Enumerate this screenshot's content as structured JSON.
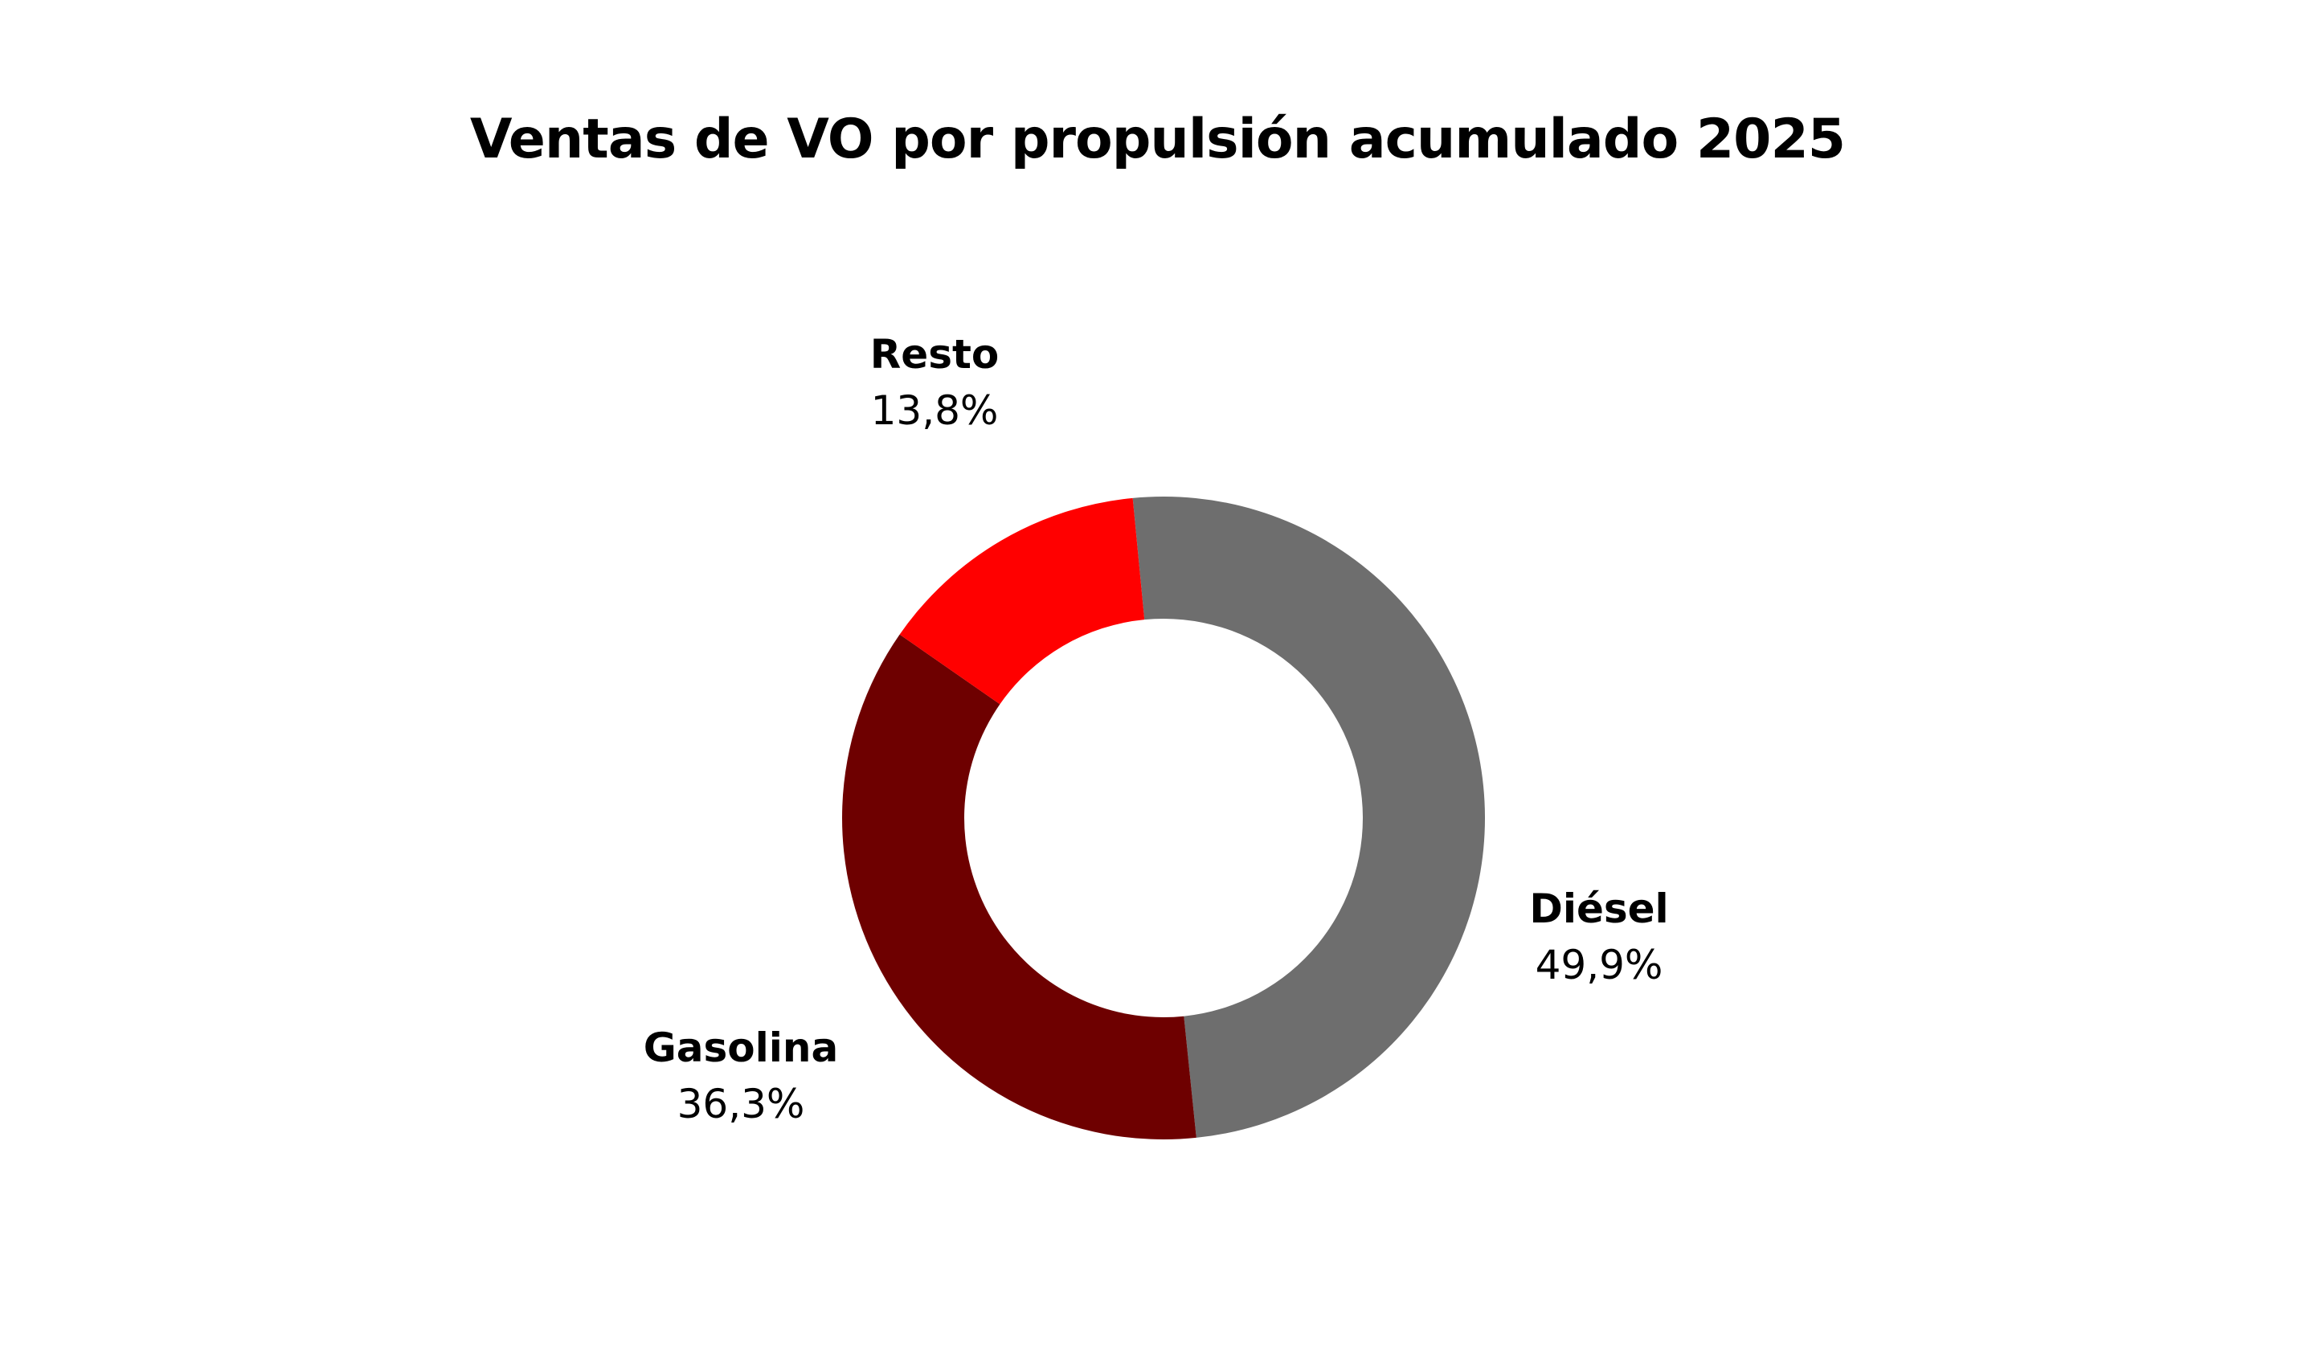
{
  "chart_data": {
    "type": "pie",
    "variant": "donut",
    "title": "Ventas de VO por propulsión acumulado 2025",
    "slices": [
      {
        "label": "Diésel",
        "value": 49.9,
        "value_label": "49,9%",
        "color": "#6e6e6e"
      },
      {
        "label": "Gasolina",
        "value": 36.3,
        "value_label": "36,3%",
        "color": "#6e0000"
      },
      {
        "label": "Resto",
        "value": 13.8,
        "value_label": "13,8%",
        "color": "#ff0000"
      }
    ],
    "legend": "none",
    "labels_placement": "outside"
  }
}
